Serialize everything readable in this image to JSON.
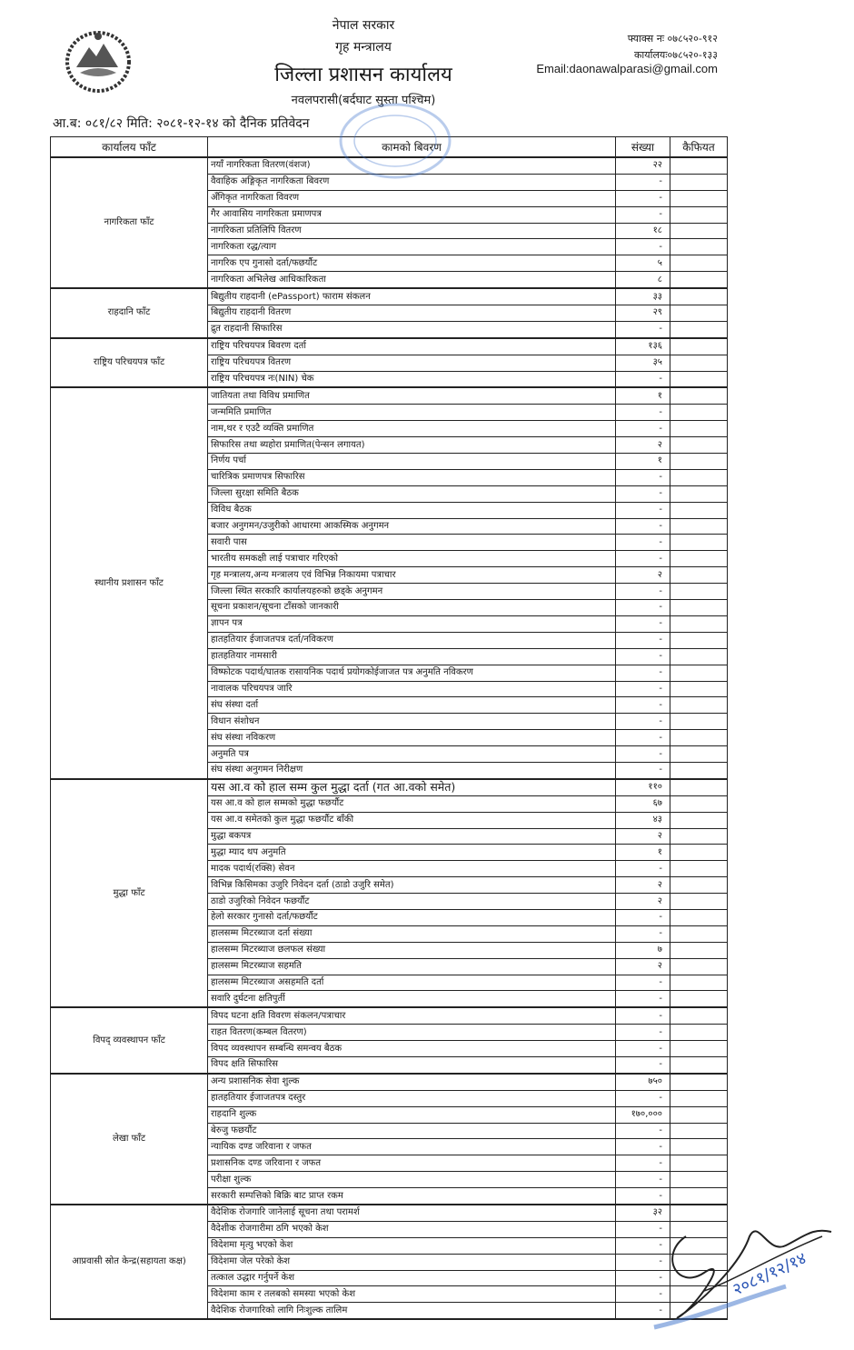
{
  "header": {
    "government": "नेपाल सरकार",
    "ministry": "गृह मन्त्रालय",
    "office": "जिल्ला प्रशासन कार्यालय",
    "district": "नवलपरासी(बर्दघाट सुस्ता पश्चिम)",
    "report_line": "आ.ब: ०८१/८२ मिति: २०८१-१२-१४ को दैनिक प्रतिवेदन",
    "fax": "फ्याक्स नः ०७८५२०-९१२",
    "phone": "कार्यालयः०७८५२०-१३३",
    "email": "Email:daonawalparasi@gmail.com"
  },
  "table": {
    "columns": [
      "कार्यालय फाँट",
      "कामको बिवरण",
      "संख्या",
      "कैफियत"
    ],
    "groups": [
      {
        "name": "नागरिकता फाँट",
        "rows": [
          [
            "नयाँ नागरिकता वितरण(वंशज)",
            "२२"
          ],
          [
            "वैवाहिक अङ्गिकृत नागरिकता बिवरण",
            "-"
          ],
          [
            "अँगिकृत नागरिकता विवरण",
            "-"
          ],
          [
            "गैर आवासिय नागरिकता प्रमाणपत्र",
            "-"
          ],
          [
            "नागरिकता प्रतिलिपि वितरण",
            "१८"
          ],
          [
            "नागरिकता रद्ध/त्याग",
            "-"
          ],
          [
            "नागरिक एप गुनासो दर्ता/फछर्यौट",
            "५"
          ],
          [
            "नागरिकता अभिलेख आधिकारिकता",
            "८"
          ]
        ]
      },
      {
        "name": "राहदानि फाँट",
        "rows": [
          [
            "बिद्युतीय राहदानी (ePassport) फाराम संकलन",
            "३३"
          ],
          [
            "बिद्युतीय राहदानी वितरण",
            "२९"
          ],
          [
            "द्रुत राहदानी सिफारिस",
            "-"
          ]
        ]
      },
      {
        "name": "राष्ट्रिय परिचयपत्र फाँट",
        "rows": [
          [
            "राष्ट्रिय परिचयपत्र बिवरण दर्ता",
            "१३६"
          ],
          [
            "राष्ट्रिय परिचयपत्र वितरण",
            "३५"
          ],
          [
            "राष्ट्रिय परिचयपत्र नः(NIN) चेक",
            "-"
          ]
        ]
      },
      {
        "name": "स्थानीय प्रशासन फाँट",
        "rows": [
          [
            "जातियता तथा विविध प्रमाणित",
            "१"
          ],
          [
            "जन्ममिति प्रमाणित",
            "-"
          ],
          [
            "नाम,थर र एउटै व्यक्ति प्रमाणित",
            "-"
          ],
          [
            "सिफारिस तथा ब्यहोरा प्रमाणित(पेन्सन लगायत)",
            "२"
          ],
          [
            "निर्णय पर्चा",
            "१"
          ],
          [
            "चारित्रिक प्रमाणपत्र सिफारिस",
            "-"
          ],
          [
            "जिल्ला सुरक्षा समिति बैठक",
            "-"
          ],
          [
            "विविध बैठक",
            "-"
          ],
          [
            "बजार अनुगमन/उजुरीको आधारमा आकस्मिक अनुगमन",
            "-"
          ],
          [
            "सवारी पास",
            "-"
          ],
          [
            "भारतीय समकक्षी लाई पत्राचार गरिएको",
            "-"
          ],
          [
            "गृह मन्त्रालय,अन्य मन्त्रालय एवं विभिन्न निकायमा पत्राचार",
            "२"
          ],
          [
            "जिल्ला स्थित सरकारि कार्यालयहरुको छड्के अनुगमन",
            "-"
          ],
          [
            "सूचना प्रकाशन/सूचना टाँसको जानकारी",
            "-"
          ],
          [
            "ज्ञापन पत्र",
            "-"
          ],
          [
            "हातहतियार ईजाजतपत्र दर्ता/नविकरण",
            "-"
          ],
          [
            "हातहतियार नामसारी",
            "-"
          ],
          [
            "विष्फोटक पदार्थ/घातक रासायनिक पदार्थ प्रयोगकोईजाजत पत्र अनुमति नविकरण",
            "-"
          ],
          [
            "नावालक परिचयपत्र जारि",
            "-"
          ],
          [
            "संघ संस्था दर्ता",
            "-"
          ],
          [
            "विधान संशोधन",
            "-"
          ],
          [
            "संघ संस्था नविकरण",
            "-"
          ],
          [
            "अनुमति पत्र",
            "-"
          ],
          [
            "संघ संस्था अनुगमन निरीक्षण",
            "-"
          ]
        ]
      },
      {
        "name": "मुद्धा फाँट",
        "rows": [
          [
            "यस आ.व को हाल सम्म कुल मुद्धा दर्ता (गत आ.वको समेत)",
            "११०"
          ],
          [
            "यस आ.व को हाल सम्मको मुद्धा फछर्यौट",
            "६७"
          ],
          [
            "यस आ.व समेतको कुल मुद्धा फछर्यौट बाँकी",
            "४३"
          ],
          [
            "मुद्धा बकपत्र",
            "२"
          ],
          [
            "मुद्धा म्याद थप अनुमति",
            "१"
          ],
          [
            "मादक पदार्थ(रक्सि) सेवन",
            "-"
          ],
          [
            "विभिन्न किसिमका उजुरि निवेदन दर्ता (ठाडो उजुरि समेत)",
            "२"
          ],
          [
            "ठाडो उजुरिको निवेदन फछर्यौट",
            "२"
          ],
          [
            "हेलो सरकार गुनासो दर्ता/फछर्यौट",
            "-"
          ],
          [
            "हालसम्म मिटरब्याज दर्ता संख्या",
            "-"
          ],
          [
            "हालसम्म मिटरब्याज छलफल संख्या",
            "७"
          ],
          [
            "हालसम्म मिटरब्याज सहमति",
            "२"
          ],
          [
            "हालसम्म मिटरब्याज असहमति दर्ता",
            "-"
          ],
          [
            "सवारि दुर्घटना क्षतिपुर्ती",
            "-"
          ]
        ]
      },
      {
        "name": "विपद् व्यवस्थापन फाँट",
        "rows": [
          [
            "विपद घटना क्षति विवरण संकलन/पत्राचार",
            "-"
          ],
          [
            "राहत वितरण(कम्बल वितरण)",
            "-"
          ],
          [
            "विपद व्यवस्थापन सम्बन्धि समन्वय बैठक",
            "-"
          ],
          [
            "विपद क्षति सिफारिस",
            "-"
          ]
        ]
      },
      {
        "name": "लेखा फाँट",
        "rows": [
          [
            "अन्य प्रशासनिक सेवा शुल्क",
            "७५०"
          ],
          [
            "हातहतियार ईजाजतपत्र दस्तुर",
            "-"
          ],
          [
            "राहदानि शुल्क",
            "१७०,०००"
          ],
          [
            "बेरुजु फछर्यौट",
            "-"
          ],
          [
            "न्यायिक दण्ड जरिवाना र जफत",
            "-"
          ],
          [
            "प्रशासनिक दण्ड जरिवाना र जफत",
            "-"
          ],
          [
            "परीक्षा शुल्क",
            "-"
          ],
          [
            "सरकारी सम्पत्तिको बिक्रि बाट प्राप्त रकम",
            "-"
          ]
        ]
      },
      {
        "name": "आप्रवासी स्रोत केन्द्र(सहायता कक्ष)",
        "rows": [
          [
            "वैदेशिक रोजगारि जानेलाई सूचना तथा परामर्श",
            "३२"
          ],
          [
            "वैदेशीक रोजगारीमा ठगि भएको केश",
            "-"
          ],
          [
            "विदेशमा मृत्यु भएको केश",
            "-"
          ],
          [
            "विदेशमा जेल परेको केश",
            "-"
          ],
          [
            "तत्काल उद्धार गर्नुपर्ने केश",
            "-"
          ],
          [
            "विदेशमा काम र तलबको समस्या भएको केश",
            "-"
          ],
          [
            "वैदेशिक रोजगारिको लागि निःशुल्क तालिम",
            "-"
          ]
        ]
      }
    ]
  },
  "signature_date": "२०८१/१२/१४",
  "colors": {
    "ink": "#1a1a1a",
    "stamp": "#3a6fc9"
  }
}
